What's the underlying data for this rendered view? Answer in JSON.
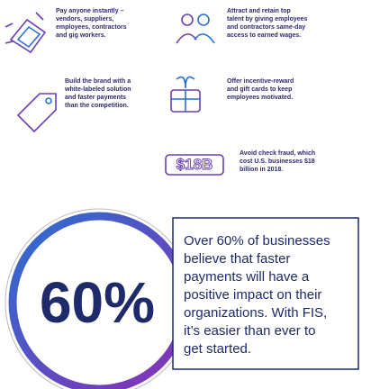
{
  "items": [
    {
      "lines": [
        "Pay anyone instantly –",
        "vendors, suppliers,",
        "employees, contractors",
        "and gig workers."
      ]
    },
    {
      "lines": [
        "Attract and retain top",
        "talent by giving employees",
        "and contractors same-day",
        "access to earned wages."
      ]
    },
    {
      "lines": [
        "Build the brand with a",
        "white-labeled solution",
        "and faster payments",
        "than the competition."
      ]
    },
    {
      "lines": [
        "Offer incentive-reward",
        "and gift cards to keep",
        "employees motivated."
      ]
    },
    {
      "lines": [
        "Avoid check fraud, which",
        "cost U.S. businesses $18",
        "billion in 2018."
      ]
    }
  ],
  "badge": "$18B",
  "stat": {
    "figure": "60%",
    "lines": [
      "Over 60% of businesses",
      "believe that faster",
      "payments will have a",
      "positive impact on their",
      "organizations. With FIS,",
      "it’s easier than ever to",
      "get started."
    ]
  }
}
